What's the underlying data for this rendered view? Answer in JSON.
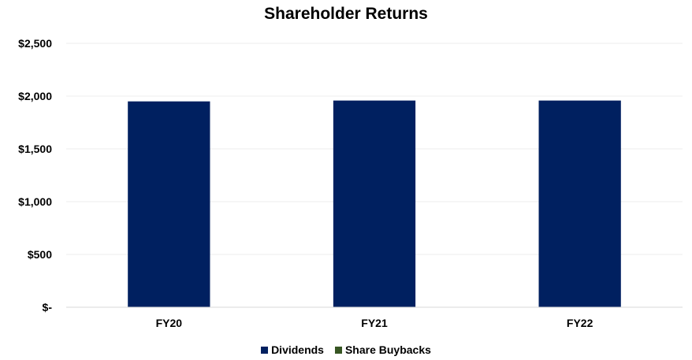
{
  "chart_data": {
    "type": "bar",
    "title": "Shareholder Returns",
    "categories": [
      "FY20",
      "FY21",
      "FY22"
    ],
    "series": [
      {
        "name": "Dividends",
        "color": "#002060",
        "values": [
          1950,
          1958,
          1958
        ]
      },
      {
        "name": "Share Buybacks",
        "color": "#375623",
        "values": [
          0,
          0,
          0
        ]
      }
    ],
    "ylim": [
      0,
      2500
    ],
    "yticks": [
      0,
      500,
      1000,
      1500,
      2000,
      2500
    ],
    "ytick_labels": [
      "$-",
      "$500",
      "$1,000",
      "$1,500",
      "$2,000",
      "$2,500"
    ],
    "grid": true,
    "legend": "bottom",
    "stacked": true
  }
}
